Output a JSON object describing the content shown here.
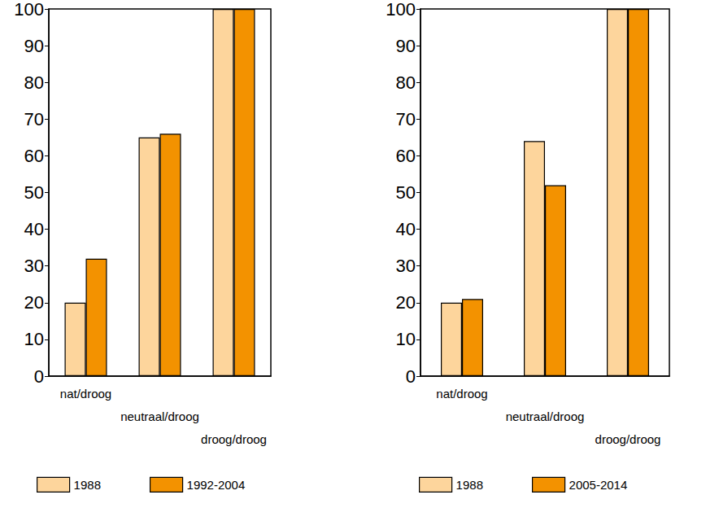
{
  "chart_data": [
    {
      "type": "bar",
      "categories": [
        "nat/droog",
        "neutraal/droog",
        "droog/droog"
      ],
      "series": [
        {
          "name": "1988",
          "color": "#fdd59c",
          "values": [
            20,
            65,
            100
          ]
        },
        {
          "name": "1992-2004",
          "color": "#f39200",
          "values": [
            32,
            66,
            100
          ]
        }
      ],
      "ylim": [
        0,
        100
      ],
      "yticks": [
        0,
        10,
        20,
        30,
        40,
        50,
        60,
        70,
        80,
        90,
        100
      ],
      "grid": false,
      "legend": "bottom"
    },
    {
      "type": "bar",
      "categories": [
        "nat/droog",
        "neutraal/droog",
        "droog/droog"
      ],
      "series": [
        {
          "name": "1988",
          "color": "#fdd59c",
          "values": [
            20,
            64,
            100
          ]
        },
        {
          "name": "2005-2014",
          "color": "#f39200",
          "values": [
            21,
            52,
            100
          ]
        }
      ],
      "ylim": [
        0,
        100
      ],
      "yticks": [
        0,
        10,
        20,
        30,
        40,
        50,
        60,
        70,
        80,
        90,
        100
      ],
      "grid": false,
      "legend": "bottom"
    }
  ]
}
